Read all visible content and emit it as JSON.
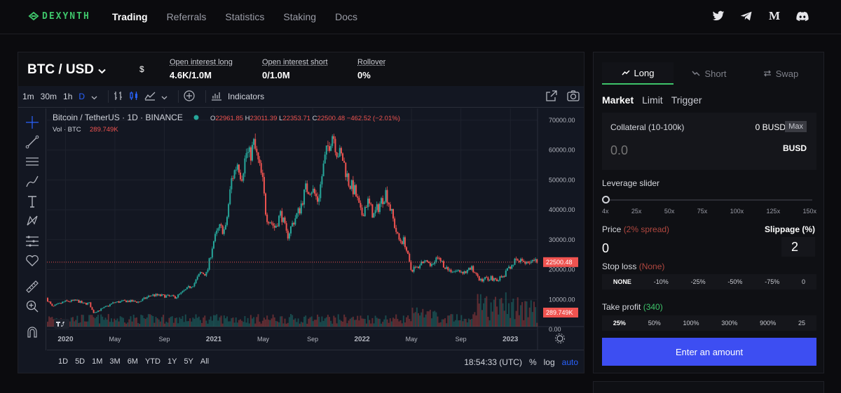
{
  "nav": {
    "logo_text": "DEXYNTH",
    "links": [
      "Trading",
      "Referrals",
      "Statistics",
      "Staking",
      "Docs"
    ],
    "active_link": "Trading",
    "socials": [
      "twitter-icon",
      "telegram-icon",
      "medium-icon",
      "discord-icon"
    ],
    "medium_glyph": "M"
  },
  "market": {
    "pair": "BTC / USD",
    "currency_symbol": "$",
    "stats": [
      {
        "label": "Open interest long",
        "value": "4.6K/1.0M"
      },
      {
        "label": "Open interest short",
        "value": "0/1.0M"
      },
      {
        "label": "Rollover",
        "value": "0%"
      }
    ]
  },
  "chart_toolbar": {
    "timeframes": [
      "1m",
      "30m",
      "1h",
      "D"
    ],
    "active_timeframe": "D",
    "indicators_label": "Indicators"
  },
  "chart_legend": {
    "symbol": "Bitcoin / TetherUS · 1D · BINANCE",
    "o_label": "O",
    "o": "22961.85",
    "h_label": "H",
    "h": "23011.39",
    "l_label": "L",
    "l": "22353.71",
    "c_label": "C",
    "c": "22500.48",
    "change": "−462.52 (−2.01%)",
    "vol_label": "Vol · BTC",
    "vol": "289.749K"
  },
  "chart_bottom": {
    "ranges": [
      "1D",
      "5D",
      "1M",
      "3M",
      "6M",
      "YTD",
      "1Y",
      "5Y",
      "All"
    ],
    "time": "18:54:33 (UTC)",
    "percent": "%",
    "log": "log",
    "auto": "auto"
  },
  "chart_data": {
    "type": "line",
    "title": "",
    "y_ticks": [
      0,
      10000,
      20000,
      30000,
      40000,
      50000,
      60000,
      70000
    ],
    "y_tick_labels": [
      "0.00",
      "10000.00",
      "20000.00",
      "30000.00",
      "40000.00",
      "50000.00",
      "60000.00",
      "70000.00"
    ],
    "ylim": [
      0,
      73000
    ],
    "x_tick_labels": [
      "2020",
      "May",
      "Sep",
      "2021",
      "May",
      "Sep",
      "2022",
      "May",
      "Sep",
      "2023"
    ],
    "x_ticks_month_index": [
      0,
      4,
      8,
      12,
      16,
      20,
      24,
      28,
      32,
      36
    ],
    "month_index_range": [
      -1.5,
      38.2
    ],
    "series": [
      {
        "month_index": [
          -1.5,
          -1,
          0,
          1,
          1.5,
          2,
          2.3,
          3,
          4,
          5,
          6,
          7,
          8,
          9,
          10,
          10.5,
          11,
          11.5,
          12,
          12.5,
          13,
          13.5,
          14,
          14.3,
          14.7,
          15,
          15.3,
          16,
          16.3,
          16.7,
          17,
          17.5,
          18,
          18.5,
          19,
          19.5,
          20,
          20.5,
          21,
          21.3,
          21.7,
          22,
          22.5,
          23,
          23.5,
          24,
          24.5,
          25,
          25.5,
          26,
          26.5,
          27,
          27.5,
          28,
          28.5,
          29,
          29.5,
          30,
          30.5,
          31,
          31.5,
          32,
          32.5,
          33,
          33.5,
          34,
          34.5,
          35,
          35.5,
          36,
          36.5,
          37,
          37.5,
          38
        ],
        "values": [
          10500,
          7500,
          9300,
          9600,
          8600,
          8700,
          5600,
          6800,
          9000,
          9500,
          9200,
          11500,
          11200,
          10800,
          13800,
          15500,
          19000,
          18500,
          29000,
          34000,
          33000,
          50000,
          56000,
          51000,
          59000,
          58000,
          62000,
          50000,
          38000,
          36000,
          34000,
          39000,
          31000,
          36000,
          40000,
          47000,
          47000,
          43000,
          56000,
          61000,
          66000,
          60000,
          57000,
          49000,
          46000,
          38000,
          43000,
          38000,
          42000,
          46000,
          38000,
          30000,
          29500,
          20000,
          20500,
          23000,
          21000,
          24000,
          22500,
          20000,
          19500,
          19500,
          19200,
          20500,
          16500,
          17000,
          17200,
          16700,
          17500,
          21000,
          23000,
          22500,
          22800,
          22500
        ]
      }
    ],
    "last_price": "22500.48",
    "last_volume": "289.749K",
    "volume_axis_label": "289.749K"
  },
  "order": {
    "tabs": [
      {
        "label": "Long",
        "icon": "trend-up-icon"
      },
      {
        "label": "Short",
        "icon": "trend-down-icon"
      },
      {
        "label": "Swap",
        "icon": "swap-icon"
      }
    ],
    "active_tab": "Long",
    "order_types": [
      "Market",
      "Limit",
      "Trigger"
    ],
    "active_order_type": "Market",
    "collateral_label": "Collateral (10-100k)",
    "collateral_balance": "0 BUSD",
    "max_label": "Max",
    "collateral_value": "0.0",
    "collateral_unit": "BUSD",
    "leverage_label": "Leverage slider",
    "leverage_ticks": [
      "4x",
      "25x",
      "50x",
      "75x",
      "100x",
      "125x",
      "150x"
    ],
    "leverage_value": 4,
    "price_label": "Price",
    "price_spread": "(2% spread)",
    "price_value": "0",
    "slippage_label": "Slippage (%)",
    "slippage_value": "2",
    "stop_loss_label": "Stop loss",
    "stop_loss_value": "(None)",
    "stop_loss_options": [
      "NONE",
      "-10%",
      "-25%",
      "-50%",
      "-75%",
      "0"
    ],
    "stop_loss_active": "NONE",
    "take_profit_label": "Take profit",
    "take_profit_value": "(340)",
    "take_profit_options": [
      "25%",
      "50%",
      "100%",
      "300%",
      "900%",
      "25"
    ],
    "take_profit_active": "25%",
    "enter_label": "Enter an amount"
  },
  "colors": {
    "accent_green": "#3ec46a",
    "button_blue": "#3d4ef2",
    "candle_up": "#26a69a",
    "candle_down": "#ef5350",
    "chart_bg": "#131722"
  }
}
